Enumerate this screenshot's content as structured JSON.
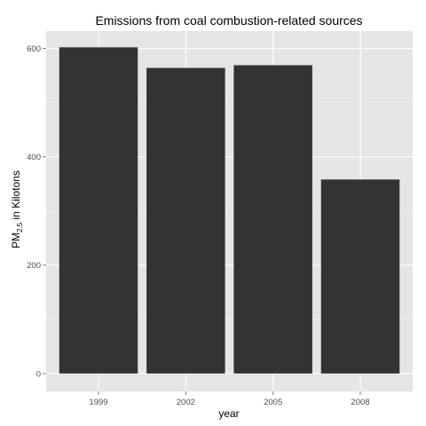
{
  "chart_data": {
    "type": "bar",
    "title": "Emissions from coal combustion-related sources",
    "xlabel": "year",
    "ylabel_main": "PM",
    "ylabel_sub": "2.5",
    "ylabel_suffix": " in Kilotons",
    "categories": [
      "1999",
      "2002",
      "2005",
      "2008"
    ],
    "values": [
      602,
      564,
      569,
      358
    ],
    "ylim": [
      -33,
      632
    ],
    "yticks": [
      0,
      200,
      400,
      600
    ],
    "ytick_labels": [
      "0",
      "200",
      "400",
      "600"
    ],
    "grid": true,
    "colors": {
      "panel": "#e5e5e5",
      "grid_major": "#ffffff",
      "grid_minor": "#f2f2f2",
      "bar": "#333333",
      "tick_text": "#4d4d4d",
      "tick_mark": "#7f7f7f"
    }
  }
}
